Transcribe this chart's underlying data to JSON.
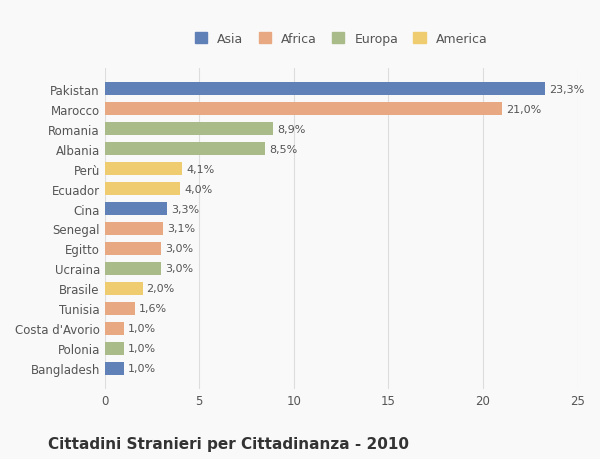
{
  "categories": [
    "Pakistan",
    "Marocco",
    "Romania",
    "Albania",
    "Perù",
    "Ecuador",
    "Cina",
    "Senegal",
    "Egitto",
    "Ucraina",
    "Brasile",
    "Tunisia",
    "Costa d'Avorio",
    "Polonia",
    "Bangladesh"
  ],
  "values": [
    23.3,
    21.0,
    8.9,
    8.5,
    4.1,
    4.0,
    3.3,
    3.1,
    3.0,
    3.0,
    2.0,
    1.6,
    1.0,
    1.0,
    1.0
  ],
  "labels": [
    "23,3%",
    "21,0%",
    "8,9%",
    "8,5%",
    "4,1%",
    "4,0%",
    "3,3%",
    "3,1%",
    "3,0%",
    "3,0%",
    "2,0%",
    "1,6%",
    "1,0%",
    "1,0%",
    "1,0%"
  ],
  "regions": [
    "Asia",
    "Africa",
    "Europa",
    "Europa",
    "America",
    "America",
    "Asia",
    "Africa",
    "Africa",
    "Europa",
    "America",
    "Africa",
    "Africa",
    "Europa",
    "Asia"
  ],
  "colors": {
    "Asia": "#6080b8",
    "Africa": "#e8a882",
    "Europa": "#a8bb88",
    "America": "#f0cc70"
  },
  "legend_order": [
    "Asia",
    "Africa",
    "Europa",
    "America"
  ],
  "title": "Cittadini Stranieri per Cittadinanza - 2010",
  "xlabel": "",
  "xlim": [
    0,
    25
  ],
  "xticks": [
    0,
    5,
    10,
    15,
    20,
    25
  ],
  "background_color": "#f9f9f9",
  "grid_color": "#dddddd",
  "bar_height": 0.65,
  "title_fontsize": 11,
  "subtitle_fontsize": 8.5,
  "label_fontsize": 8,
  "tick_fontsize": 8.5,
  "legend_fontsize": 9
}
